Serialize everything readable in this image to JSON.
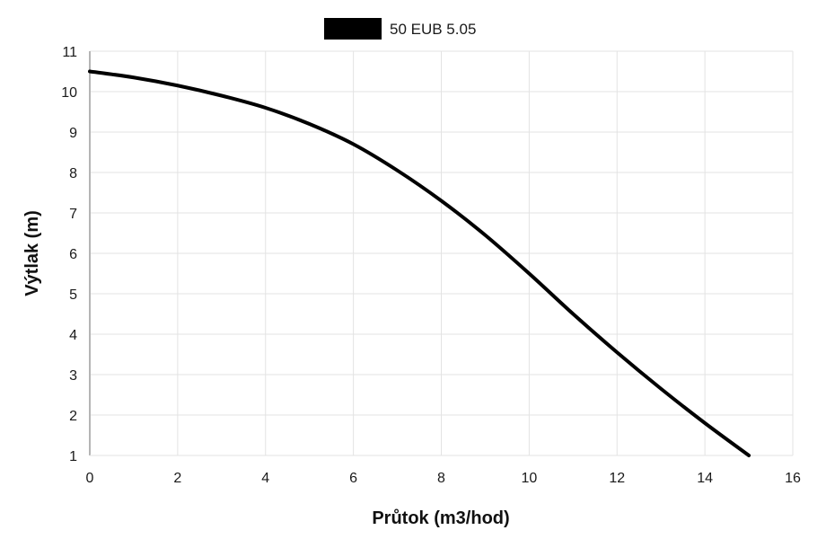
{
  "chart_data": {
    "type": "line",
    "xlabel": "Průtok (m3/hod)",
    "ylabel": "Výtlak (m)",
    "xlim": [
      0,
      16
    ],
    "ylim": [
      1,
      11
    ],
    "xticks": [
      0,
      2,
      4,
      6,
      8,
      10,
      12,
      14,
      16
    ],
    "yticks": [
      1,
      2,
      3,
      4,
      5,
      6,
      7,
      8,
      9,
      10,
      11
    ],
    "grid": true,
    "legend_position": "top-center",
    "series": [
      {
        "name": "50 EUB 5.05",
        "color": "#000000",
        "x": [
          0,
          1,
          2,
          3,
          4,
          5,
          6,
          7,
          8,
          9,
          10,
          11,
          12,
          13,
          14,
          15
        ],
        "y": [
          10.5,
          10.35,
          10.15,
          9.9,
          9.6,
          9.2,
          8.7,
          8.05,
          7.3,
          6.45,
          5.5,
          4.5,
          3.55,
          2.65,
          1.8,
          1.0
        ]
      }
    ]
  }
}
